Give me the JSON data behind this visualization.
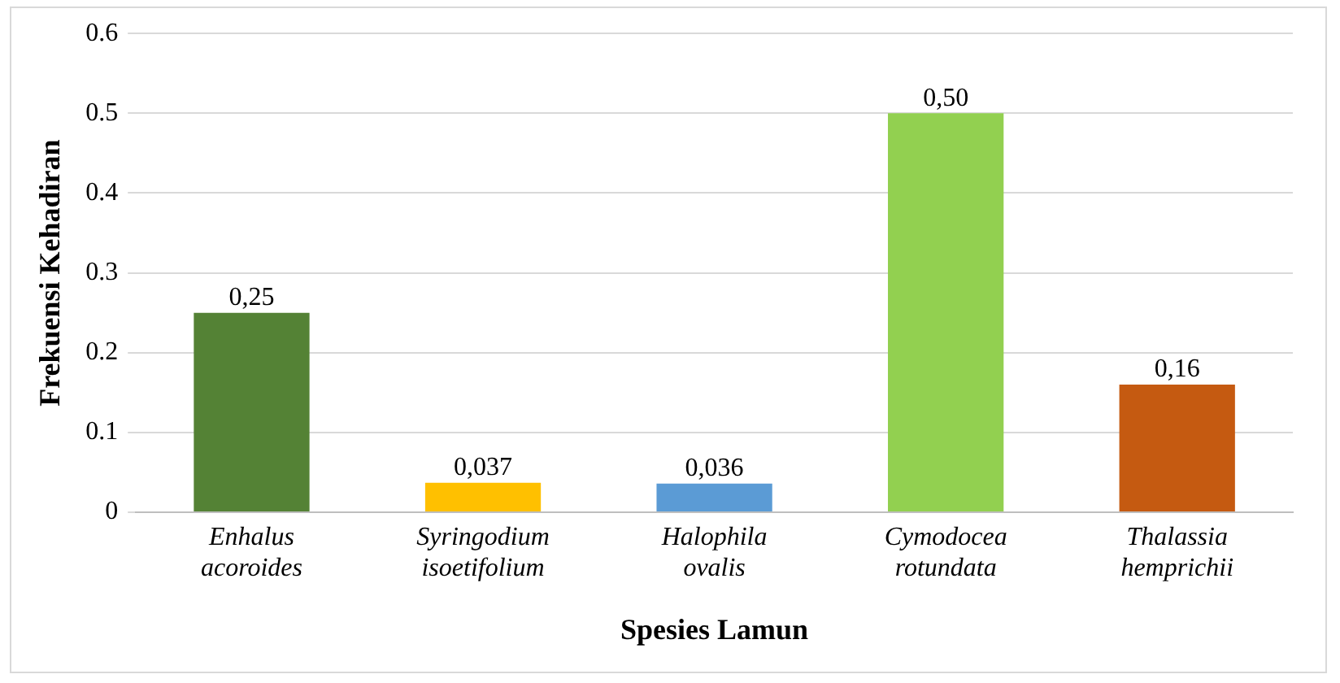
{
  "chart_data": {
    "type": "bar",
    "xlabel": "Spesies Lamun",
    "ylabel": "Frekuensi Kehadiran",
    "categories": [
      "Enhalus acoroides",
      "Syringodium isoetifolium",
      "Halophila ovalis",
      "Cymodocea rotundata",
      "Thalassia hemprichii"
    ],
    "values": [
      0.25,
      0.037,
      0.036,
      0.5,
      0.16
    ],
    "colors": [
      "#548235",
      "#ffc000",
      "#5b9bd5",
      "#92d050",
      "#c55a11"
    ],
    "value_labels": [
      "0,25",
      "0,037",
      "0,036",
      "0,50",
      "0,16"
    ],
    "ylim": [
      0,
      0.6
    ],
    "yticks": [
      0,
      0.1,
      0.2,
      0.3,
      0.4,
      0.5,
      0.6
    ],
    "grid": "y",
    "legend": false
  }
}
